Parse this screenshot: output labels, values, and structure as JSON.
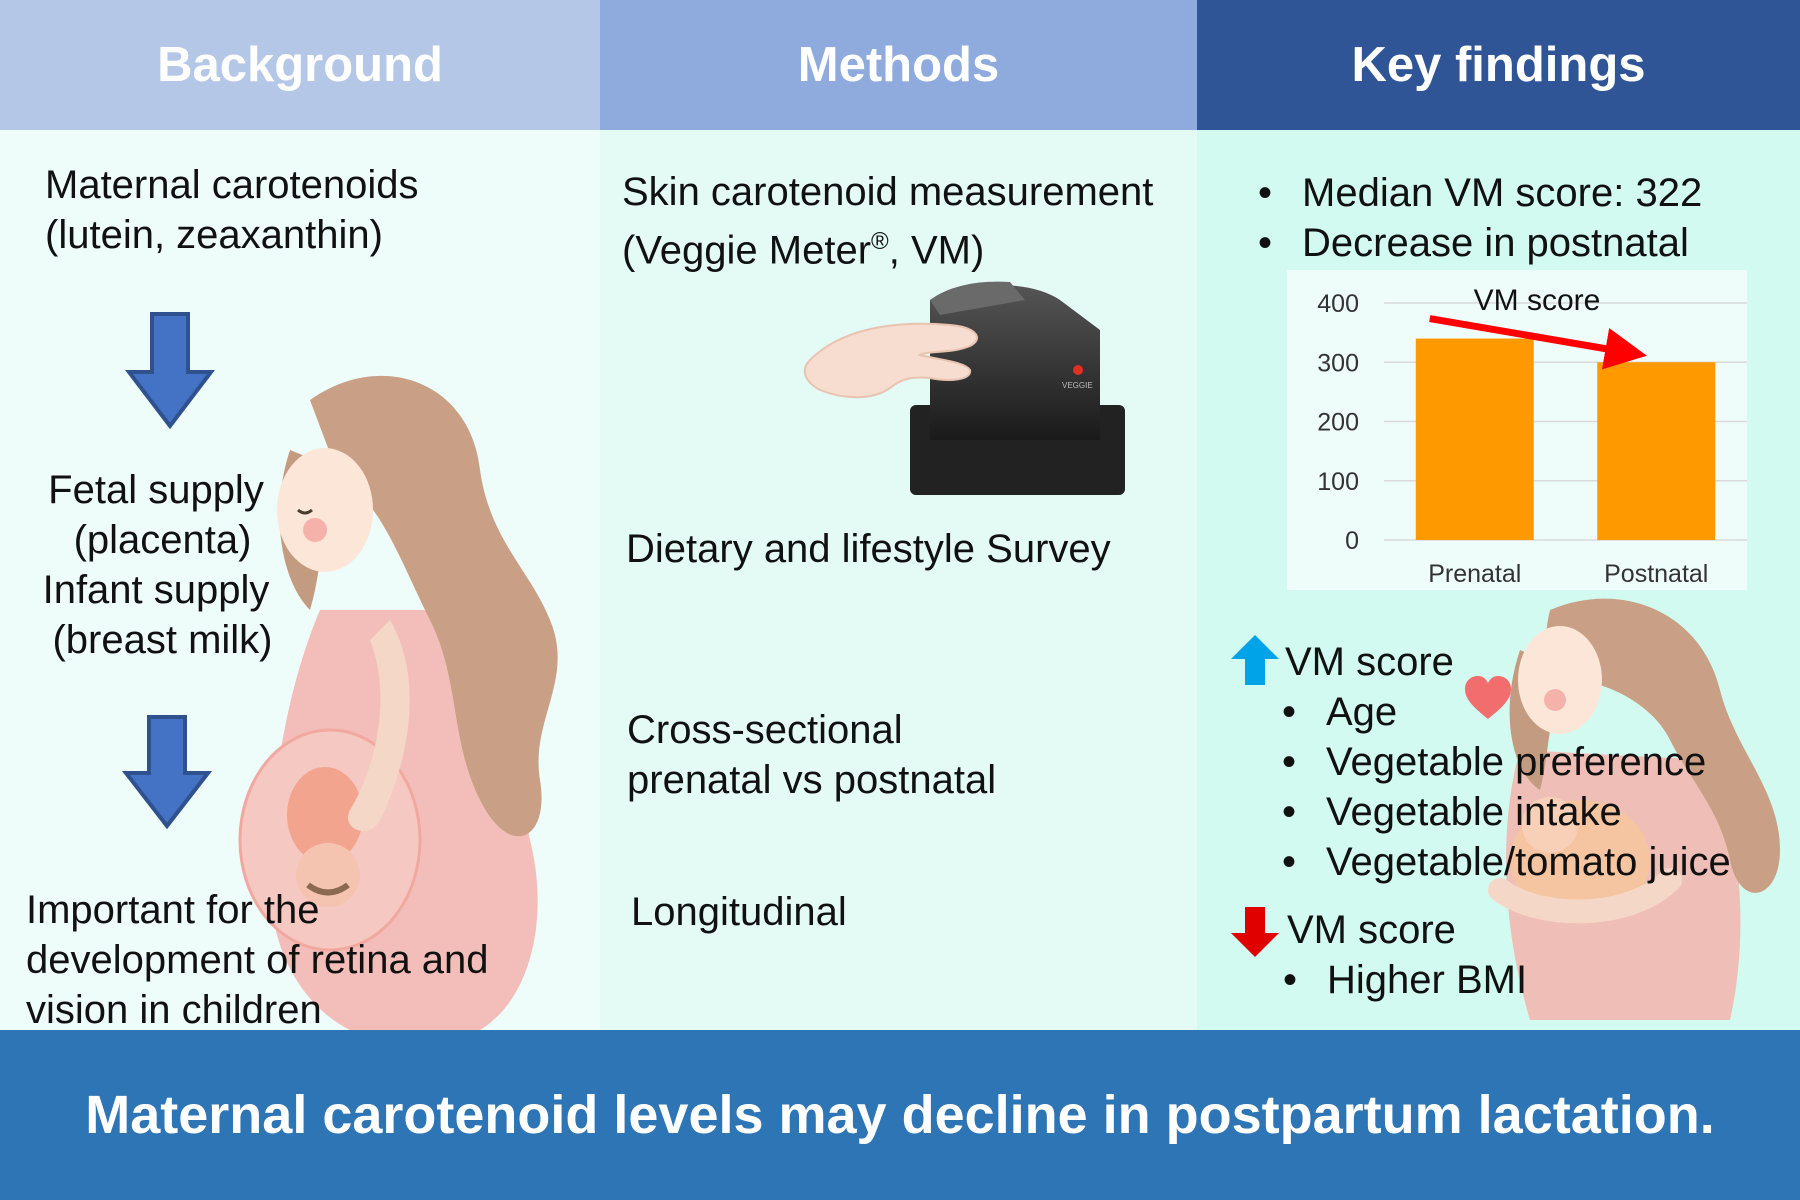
{
  "headers": {
    "background": "Background",
    "methods": "Methods",
    "findings": "Key findings"
  },
  "colors": {
    "header_background": "#b4c7e7",
    "header_methods": "#8faadc",
    "header_findings": "#2f5597",
    "panel_background": "#eefcfa",
    "panel_methods": "#e4fbf5",
    "panel_findings": "#d2faf0",
    "footer": "#2e75b6",
    "bar": "#ff9900",
    "arrow_down": "#4472c4",
    "trend_arrow": "#ff0000",
    "up_arrow": "#00a2e8",
    "down_arrow": "#e00000"
  },
  "background": {
    "line1": "Maternal carotenoids",
    "line2": "(lutein, zeaxanthin)",
    "supply1": "Fetal supply",
    "supply2": "(placenta)",
    "supply3": "Infant supply",
    "supply4": "(breast milk)",
    "important1": "Important for the",
    "important2": "development of retina and",
    "important3": "vision in children"
  },
  "methods": {
    "skin1": "Skin carotenoid measurement",
    "skin2_prefix": "(Veggie Meter",
    "skin2_reg": "®",
    "skin2_suffix": ", VM)",
    "device_label": "VEGGIE",
    "survey": "Dietary and lifestyle Survey",
    "cross1": "Cross-sectional",
    "cross2": "prenatal vs postnatal",
    "longitudinal": "Longitudinal"
  },
  "findings": {
    "bullet1": "Median VM score: 322",
    "bullet2": "Decrease in postnatal",
    "up_title": "VM score",
    "up_items": [
      "Age",
      "Vegetable preference",
      "Vegetable intake",
      "Vegetable/tomato juice"
    ],
    "down_title": "VM score",
    "down_items": [
      "Higher BMI"
    ]
  },
  "chart_data": {
    "type": "bar",
    "title": "VM score",
    "categories": [
      "Prenatal",
      "Postnatal"
    ],
    "values": [
      340,
      300
    ],
    "ylim": [
      0,
      400
    ],
    "yticks": [
      0,
      100,
      200,
      300,
      400
    ],
    "grid": true,
    "trend": "decrease"
  },
  "footer": "Maternal carotenoid levels may decline in postpartum lactation."
}
